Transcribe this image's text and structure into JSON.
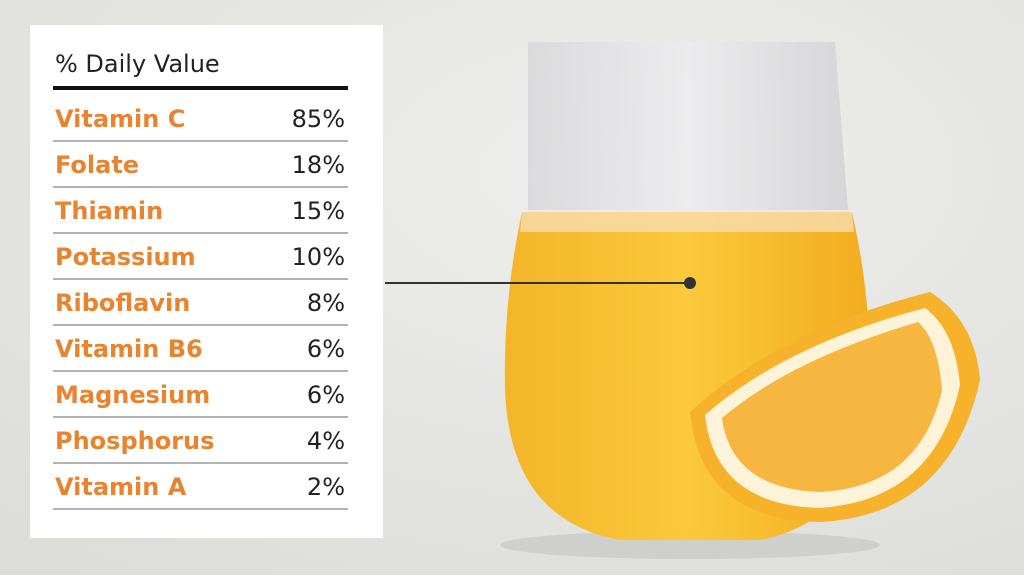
{
  "table": {
    "header": "% Daily Value",
    "rows": [
      [
        "Vitamin C",
        "85%"
      ],
      [
        "Folate",
        "18%"
      ],
      [
        "Thiamin",
        "15%"
      ],
      [
        "Potassium",
        "10%"
      ],
      [
        "Riboflavin",
        "8%"
      ],
      [
        "Vitamin B6",
        "6%"
      ],
      [
        "Magnesium",
        "6%"
      ],
      [
        "Phosphorus",
        "4%"
      ],
      [
        "Vitamin A",
        "2%"
      ]
    ]
  }
}
